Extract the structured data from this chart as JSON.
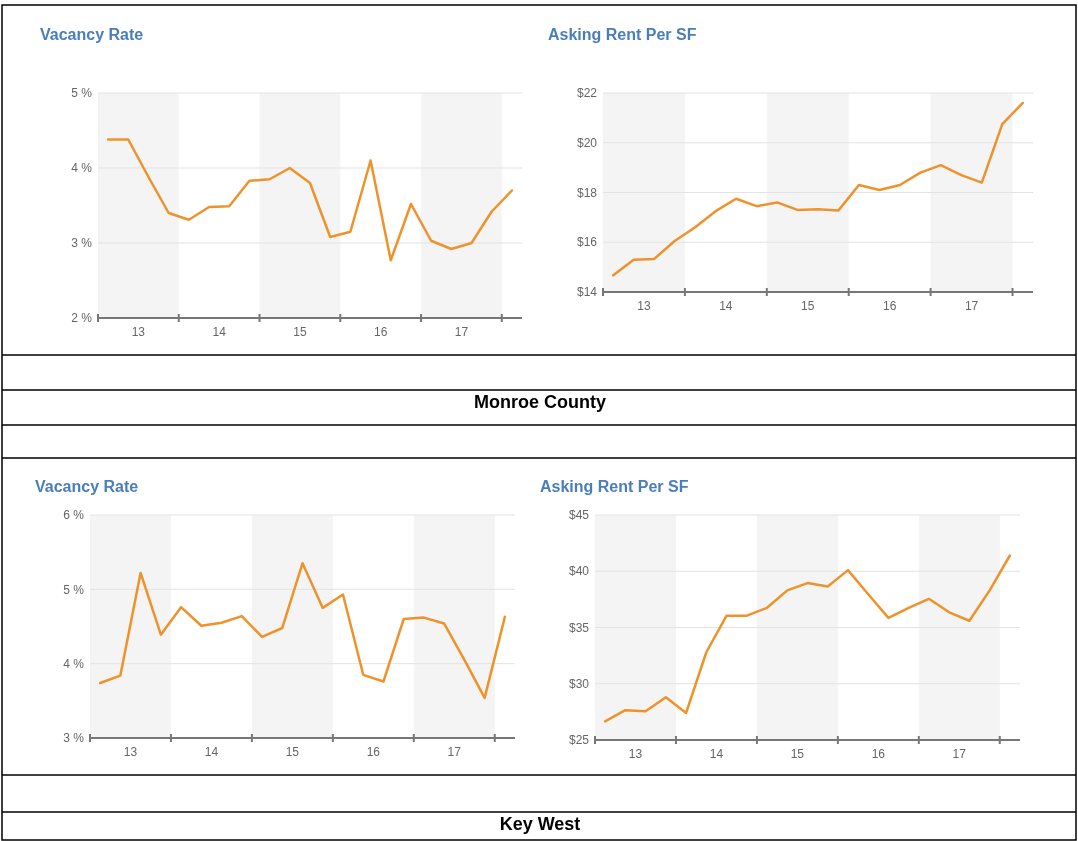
{
  "chart_data": [
    {
      "type": "line",
      "title": "Vacancy Rate",
      "x": [
        13.125,
        13.375,
        13.625,
        13.875,
        14.125,
        14.375,
        14.625,
        14.875,
        15.125,
        15.375,
        15.625,
        15.875,
        16.125,
        16.375,
        16.625,
        16.875,
        17.125,
        17.375,
        17.625,
        17.875,
        18.125
      ],
      "series": [
        {
          "color": "#f0922b",
          "values": [
            4.38,
            4.38,
            3.88,
            3.4,
            3.31,
            3.48,
            3.49,
            3.83,
            3.85,
            4.0,
            3.8,
            3.08,
            3.15,
            4.1,
            2.77,
            3.52,
            3.03,
            2.92,
            3.0,
            3.42,
            3.7
          ]
        }
      ],
      "xlim": [
        13,
        18.25
      ],
      "xticks": [
        {
          "value": 13.5,
          "label": "13"
        },
        {
          "value": 14.5,
          "label": "14"
        },
        {
          "value": 15.5,
          "label": "15"
        },
        {
          "value": 16.5,
          "label": "16"
        },
        {
          "value": 17.5,
          "label": "17"
        },
        {
          "value": 14,
          "label": null
        },
        {
          "value": 15,
          "label": null
        },
        {
          "value": 16,
          "label": null
        },
        {
          "value": 17,
          "label": null
        },
        {
          "value": 18,
          "label": null
        }
      ],
      "ylim": [
        2,
        5
      ],
      "yticks": [
        {
          "value": 2,
          "label": "2 %"
        },
        {
          "value": 3,
          "label": "3 %"
        },
        {
          "value": 4,
          "label": "4 %"
        },
        {
          "value": 5,
          "label": "5 %"
        }
      ],
      "grid": "y",
      "bands": [
        {
          "axis": "x",
          "from": 13,
          "to": 14,
          "color": "#f4f4f4"
        },
        {
          "axis": "x",
          "from": 15,
          "to": 16,
          "color": "#f4f4f4"
        },
        {
          "axis": "x",
          "from": 17,
          "to": 18,
          "color": "#f4f4f4"
        }
      ]
    },
    {
      "type": "line",
      "title": "Asking Rent Per SF",
      "x": [
        13.125,
        13.375,
        13.625,
        13.875,
        14.125,
        14.375,
        14.625,
        14.875,
        15.125,
        15.375,
        15.625,
        15.875,
        16.125,
        16.375,
        16.625,
        16.875,
        17.125,
        17.375,
        17.625,
        17.875,
        18.125
      ],
      "series": [
        {
          "color": "#f0922b",
          "values": [
            14.67,
            15.3,
            15.33,
            16.05,
            16.6,
            17.25,
            17.75,
            17.45,
            17.6,
            17.3,
            17.33,
            17.28,
            18.3,
            18.1,
            18.3,
            18.8,
            19.1,
            18.7,
            18.4,
            20.75,
            21.6
          ]
        }
      ],
      "xlim": [
        13,
        18.25
      ],
      "xticks": [
        {
          "value": 13.5,
          "label": "13"
        },
        {
          "value": 14.5,
          "label": "14"
        },
        {
          "value": 15.5,
          "label": "15"
        },
        {
          "value": 16.5,
          "label": "16"
        },
        {
          "value": 17.5,
          "label": "17"
        },
        {
          "value": 14,
          "label": null
        },
        {
          "value": 15,
          "label": null
        },
        {
          "value": 16,
          "label": null
        },
        {
          "value": 17,
          "label": null
        },
        {
          "value": 18,
          "label": null
        }
      ],
      "ylim": [
        14,
        22
      ],
      "yticks": [
        {
          "value": 14,
          "label": "$14"
        },
        {
          "value": 16,
          "label": "$16"
        },
        {
          "value": 18,
          "label": "$18"
        },
        {
          "value": 20,
          "label": "$20"
        },
        {
          "value": 22,
          "label": "$22"
        }
      ],
      "grid": "y",
      "bands": [
        {
          "axis": "x",
          "from": 13,
          "to": 14,
          "color": "#f4f4f4"
        },
        {
          "axis": "x",
          "from": 15,
          "to": 16,
          "color": "#f4f4f4"
        },
        {
          "axis": "x",
          "from": 17,
          "to": 18,
          "color": "#f4f4f4"
        }
      ]
    },
    {
      "type": "other",
      "title": "Monroe County"
    },
    {
      "type": "line",
      "title": "Vacancy Rate",
      "x": [
        13.125,
        13.375,
        13.625,
        13.875,
        14.125,
        14.375,
        14.625,
        14.875,
        15.125,
        15.375,
        15.625,
        15.875,
        16.125,
        16.375,
        16.625,
        16.875,
        17.125,
        17.375,
        17.625,
        17.875,
        18.125
      ],
      "series": [
        {
          "color": "#f0922b",
          "values": [
            3.74,
            3.84,
            5.22,
            4.39,
            4.76,
            4.51,
            4.55,
            4.64,
            4.36,
            4.48,
            5.35,
            4.75,
            4.93,
            3.85,
            3.76,
            4.6,
            4.62,
            4.54,
            4.05,
            3.54,
            4.63
          ]
        }
      ],
      "xlim": [
        13,
        18.25
      ],
      "xticks": [
        {
          "value": 13.5,
          "label": "13"
        },
        {
          "value": 14.5,
          "label": "14"
        },
        {
          "value": 15.5,
          "label": "15"
        },
        {
          "value": 16.5,
          "label": "16"
        },
        {
          "value": 17.5,
          "label": "17"
        },
        {
          "value": 14,
          "label": null
        },
        {
          "value": 15,
          "label": null
        },
        {
          "value": 16,
          "label": null
        },
        {
          "value": 17,
          "label": null
        },
        {
          "value": 18,
          "label": null
        }
      ],
      "ylim": [
        3,
        6
      ],
      "yticks": [
        {
          "value": 3,
          "label": "3 %"
        },
        {
          "value": 4,
          "label": "4 %"
        },
        {
          "value": 5,
          "label": "5 %"
        },
        {
          "value": 6,
          "label": "6 %"
        }
      ],
      "grid": "y",
      "bands": [
        {
          "axis": "x",
          "from": 13,
          "to": 14,
          "color": "#f4f4f4"
        },
        {
          "axis": "x",
          "from": 15,
          "to": 16,
          "color": "#f4f4f4"
        },
        {
          "axis": "x",
          "from": 17,
          "to": 18,
          "color": "#f4f4f4"
        }
      ]
    },
    {
      "type": "line",
      "title": "Asking Rent Per SF",
      "x": [
        13.125,
        13.375,
        13.625,
        13.875,
        14.125,
        14.375,
        14.625,
        14.875,
        15.125,
        15.375,
        15.625,
        15.875,
        16.125,
        16.375,
        16.625,
        16.875,
        17.125,
        17.375,
        17.625,
        17.875,
        18.125
      ],
      "series": [
        {
          "color": "#f0922b",
          "values": [
            26.65,
            27.65,
            27.55,
            28.8,
            27.4,
            32.8,
            36.05,
            36.05,
            36.75,
            38.3,
            38.95,
            38.65,
            40.1,
            37.95,
            35.85,
            36.75,
            37.55,
            36.35,
            35.6,
            38.3,
            41.4
          ]
        }
      ],
      "xlim": [
        13,
        18.25
      ],
      "xticks": [
        {
          "value": 13.5,
          "label": "13"
        },
        {
          "value": 14.5,
          "label": "14"
        },
        {
          "value": 15.5,
          "label": "15"
        },
        {
          "value": 16.5,
          "label": "16"
        },
        {
          "value": 17.5,
          "label": "17"
        },
        {
          "value": 14,
          "label": null
        },
        {
          "value": 15,
          "label": null
        },
        {
          "value": 16,
          "label": null
        },
        {
          "value": 17,
          "label": null
        },
        {
          "value": 18,
          "label": null
        }
      ],
      "ylim": [
        25,
        45
      ],
      "yticks": [
        {
          "value": 25,
          "label": "$25"
        },
        {
          "value": 30,
          "label": "$30"
        },
        {
          "value": 35,
          "label": "$35"
        },
        {
          "value": 40,
          "label": "$40"
        },
        {
          "value": 45,
          "label": "$45"
        }
      ],
      "grid": "y",
      "bands": [
        {
          "axis": "x",
          "from": 13,
          "to": 14,
          "color": "#f4f4f4"
        },
        {
          "axis": "x",
          "from": 15,
          "to": 16,
          "color": "#f4f4f4"
        },
        {
          "axis": "x",
          "from": 17,
          "to": 18,
          "color": "#f4f4f4"
        }
      ]
    },
    {
      "type": "other",
      "title": "Key West"
    }
  ]
}
